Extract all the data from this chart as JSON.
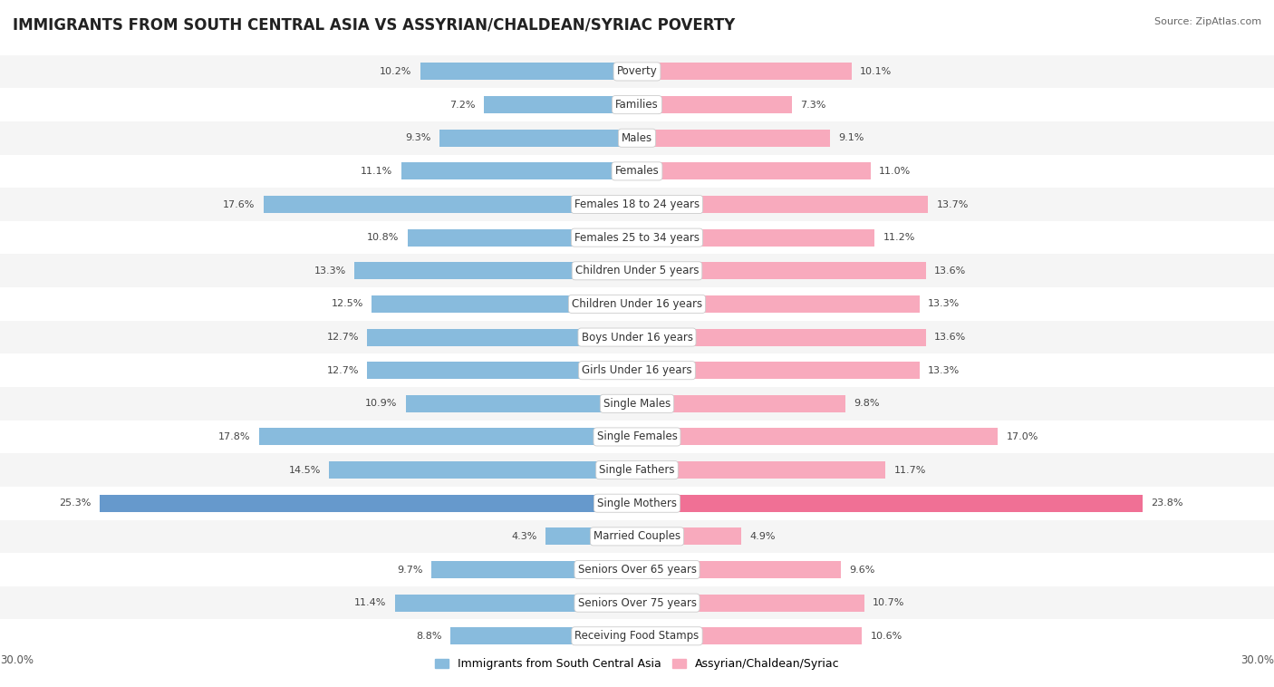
{
  "title": "IMMIGRANTS FROM SOUTH CENTRAL ASIA VS ASSYRIAN/CHALDEAN/SYRIAC POVERTY",
  "source": "Source: ZipAtlas.com",
  "categories": [
    "Poverty",
    "Families",
    "Males",
    "Females",
    "Females 18 to 24 years",
    "Females 25 to 34 years",
    "Children Under 5 years",
    "Children Under 16 years",
    "Boys Under 16 years",
    "Girls Under 16 years",
    "Single Males",
    "Single Females",
    "Single Fathers",
    "Single Mothers",
    "Married Couples",
    "Seniors Over 65 years",
    "Seniors Over 75 years",
    "Receiving Food Stamps"
  ],
  "left_values": [
    10.2,
    7.2,
    9.3,
    11.1,
    17.6,
    10.8,
    13.3,
    12.5,
    12.7,
    12.7,
    10.9,
    17.8,
    14.5,
    25.3,
    4.3,
    9.7,
    11.4,
    8.8
  ],
  "right_values": [
    10.1,
    7.3,
    9.1,
    11.0,
    13.7,
    11.2,
    13.6,
    13.3,
    13.6,
    13.3,
    9.8,
    17.0,
    11.7,
    23.8,
    4.9,
    9.6,
    10.7,
    10.6
  ],
  "left_color": "#88bbdd",
  "right_color": "#f8aabd",
  "single_mothers_left_color": "#6699cc",
  "single_mothers_right_color": "#f07095",
  "bg_row_odd": "#f5f5f5",
  "bg_row_even": "#ffffff",
  "max_val": 30.0,
  "legend_left": "Immigrants from South Central Asia",
  "legend_right": "Assyrian/Chaldean/Syriac",
  "title_fontsize": 12,
  "label_fontsize": 8.5,
  "value_fontsize": 8.0,
  "bar_height": 0.52
}
